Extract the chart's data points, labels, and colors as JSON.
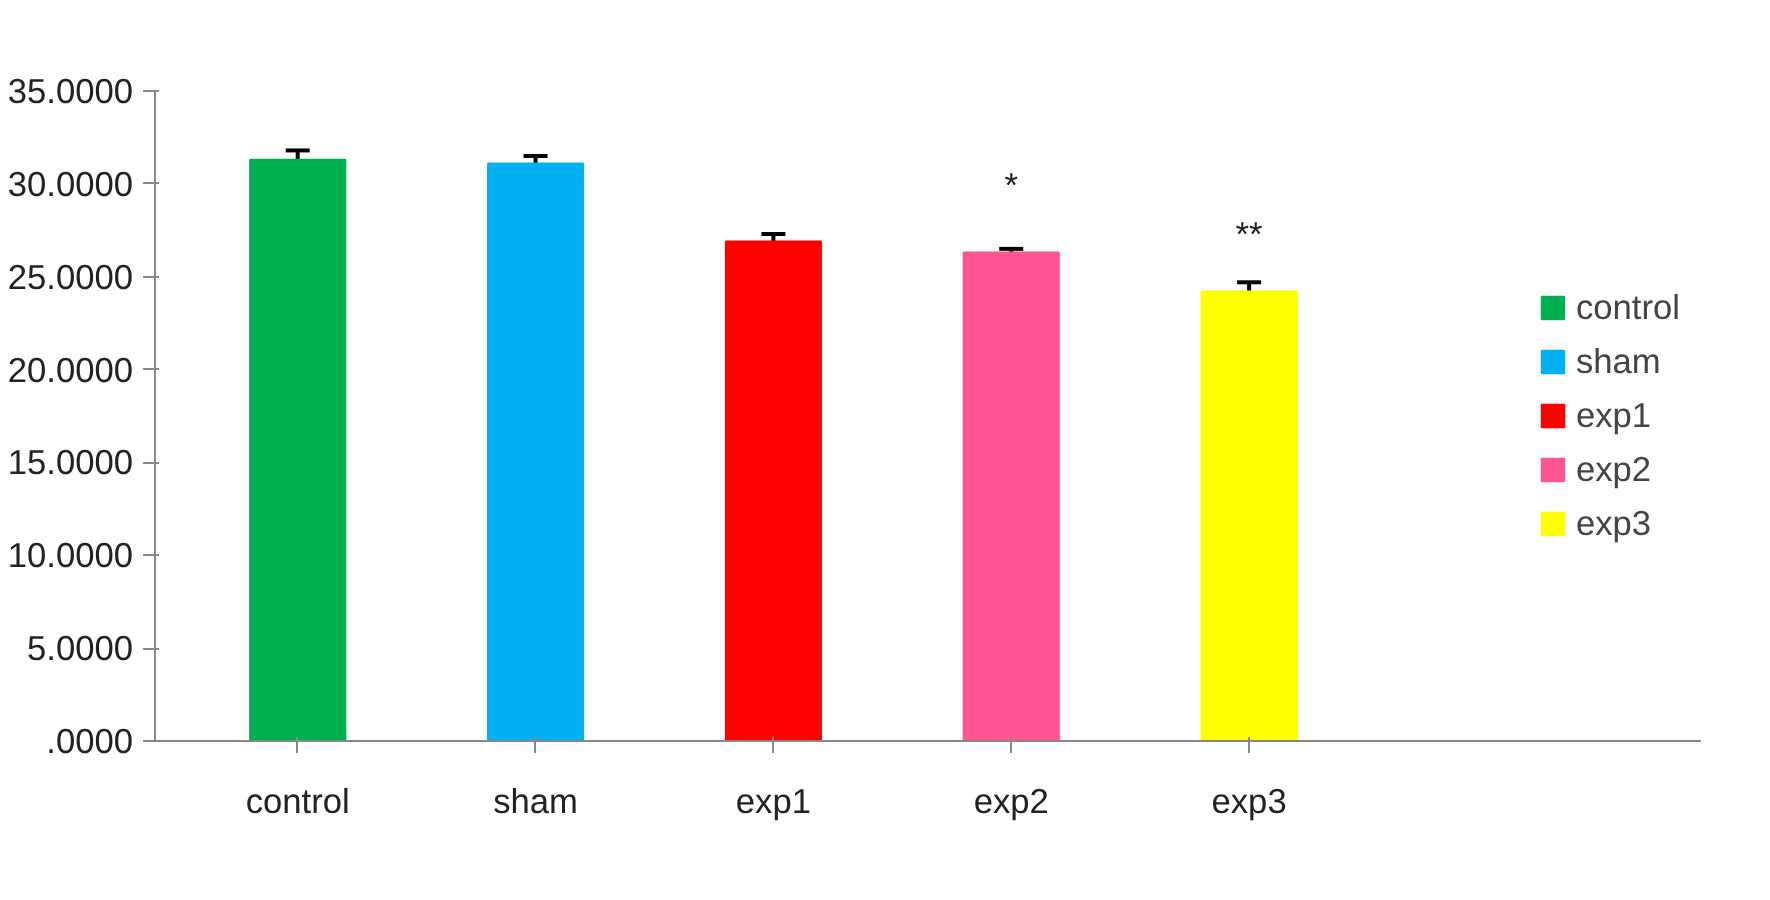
{
  "chart_data": {
    "type": "bar",
    "categories": [
      "control",
      "sham",
      "exp1",
      "exp2",
      "exp3"
    ],
    "series": [
      {
        "name": "control",
        "color": "#00b050",
        "values": [
          31.3,
          null,
          null,
          null,
          null
        ],
        "errors": [
          0.5,
          null,
          null,
          null,
          null
        ]
      },
      {
        "name": "sham",
        "color": "#00b0f0",
        "values": [
          null,
          31.1,
          null,
          null,
          null
        ],
        "errors": [
          null,
          0.4,
          null,
          null,
          null
        ]
      },
      {
        "name": "exp1",
        "color": "#ff0000",
        "values": [
          null,
          null,
          26.9,
          null,
          null
        ],
        "errors": [
          null,
          null,
          0.4,
          null,
          null
        ]
      },
      {
        "name": "exp2",
        "color": "#ff5595",
        "values": [
          null,
          null,
          null,
          26.3,
          null
        ],
        "errors": [
          null,
          null,
          null,
          0.2,
          null
        ]
      },
      {
        "name": "exp3",
        "color": "#ffff00",
        "values": [
          null,
          null,
          null,
          null,
          24.2
        ],
        "errors": [
          null,
          null,
          null,
          null,
          0.5
        ]
      }
    ],
    "ylim": [
      0,
      35
    ],
    "yticks": [
      {
        "value": 0,
        "label": ".0000"
      },
      {
        "value": 5,
        "label": "5.0000"
      },
      {
        "value": 10,
        "label": "10.0000"
      },
      {
        "value": 15,
        "label": "15.0000"
      },
      {
        "value": 20,
        "label": "20.0000"
      },
      {
        "value": 25,
        "label": "25.0000"
      },
      {
        "value": 30,
        "label": "30.0000"
      },
      {
        "value": 35,
        "label": "35.0000"
      }
    ],
    "annotations": [
      "*",
      "**"
    ],
    "legend": "right",
    "grid": false
  }
}
